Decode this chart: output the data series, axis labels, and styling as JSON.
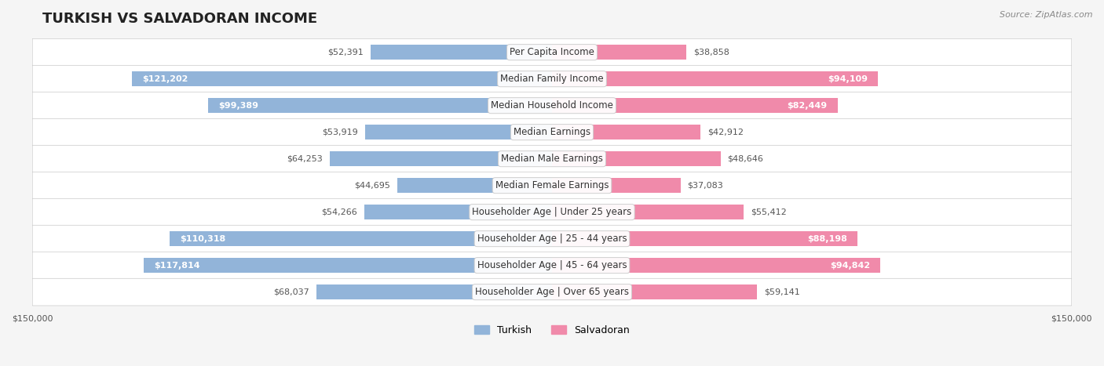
{
  "title": "TURKISH VS SALVADORAN INCOME",
  "source": "Source: ZipAtlas.com",
  "max_val": 150000,
  "categories": [
    "Per Capita Income",
    "Median Family Income",
    "Median Household Income",
    "Median Earnings",
    "Median Male Earnings",
    "Median Female Earnings",
    "Householder Age | Under 25 years",
    "Householder Age | 25 - 44 years",
    "Householder Age | 45 - 64 years",
    "Householder Age | Over 65 years"
  ],
  "turkish_values": [
    52391,
    121202,
    99389,
    53919,
    64253,
    44695,
    54266,
    110318,
    117814,
    68037
  ],
  "salvadoran_values": [
    38858,
    94109,
    82449,
    42912,
    48646,
    37083,
    55412,
    88198,
    94842,
    59141
  ],
  "turkish_color": "#92b4d9",
  "salvadoran_color": "#f08aaa",
  "turkish_label_color_threshold": 80000,
  "salvadoran_label_color_threshold": 80000,
  "background_color": "#f5f5f5",
  "row_bg_color": "#ffffff",
  "row_alt_bg_color": "#f0f0f0",
  "bar_height": 0.55,
  "title_fontsize": 13,
  "label_fontsize": 8.5,
  "value_fontsize": 8,
  "legend_fontsize": 9,
  "source_fontsize": 8
}
